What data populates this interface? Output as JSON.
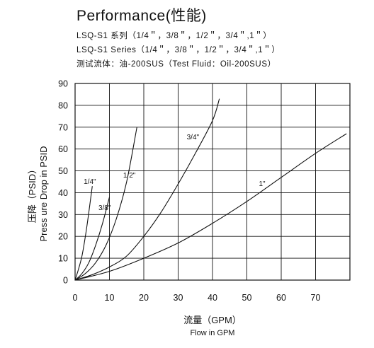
{
  "header": {
    "title": "Performance(性能)",
    "line1": "LSQ-S1  系列（1/4＂，3/8＂，1/2＂，3/4＂,1＂）",
    "line2": "LSQ-S1  Series（1/4＂，3/8＂，1/2＂，3/4＂,1＂）",
    "line3": "测试流体：油-200SUS（Test Fluid：Oil-200SUS）"
  },
  "chart_data": {
    "type": "line",
    "xlabel": "流量（GPM）",
    "xlabel_sub": "Flow in GPM",
    "ylabel": "压降（PSID）",
    "ylabel_sub": "Press ure Drop in PSID",
    "xlim": [
      0,
      80
    ],
    "ylim": [
      0,
      90
    ],
    "x_ticks": [
      "0",
      "10",
      "20",
      "30",
      "40",
      "50",
      "60",
      "70"
    ],
    "y_ticks": [
      "0",
      "10",
      "20",
      "30",
      "40",
      "50",
      "60",
      "70",
      "80",
      "90"
    ],
    "grid": true,
    "series": [
      {
        "name": "1/4\"",
        "label_at": [
          2.5,
          44
        ],
        "points": [
          [
            0,
            0
          ],
          [
            1,
            5
          ],
          [
            2,
            11
          ],
          [
            3,
            20
          ],
          [
            4,
            31
          ],
          [
            5,
            43
          ]
        ]
      },
      {
        "name": "3/8\"",
        "label_at": [
          6.8,
          32
        ],
        "points": [
          [
            0,
            0
          ],
          [
            2,
            3
          ],
          [
            4,
            8
          ],
          [
            6,
            16
          ],
          [
            8,
            26
          ],
          [
            10,
            38
          ]
        ]
      },
      {
        "name": "1/2\"",
        "label_at": [
          14,
          47
        ],
        "points": [
          [
            0,
            0
          ],
          [
            3,
            3
          ],
          [
            6,
            8
          ],
          [
            9,
            16
          ],
          [
            12,
            28
          ],
          [
            15,
            45
          ],
          [
            18,
            70
          ]
        ]
      },
      {
        "name": "3/4\"",
        "label_at": [
          32.5,
          64.5
        ],
        "points": [
          [
            0,
            0
          ],
          [
            5,
            2.5
          ],
          [
            10,
            6
          ],
          [
            15,
            11
          ],
          [
            20,
            20
          ],
          [
            25,
            31
          ],
          [
            30,
            44
          ],
          [
            35,
            58
          ],
          [
            40,
            73
          ],
          [
            42,
            83
          ]
        ]
      },
      {
        "name": "1\"",
        "label_at": [
          53.5,
          43
        ],
        "points": [
          [
            0,
            0
          ],
          [
            10,
            4
          ],
          [
            20,
            10
          ],
          [
            30,
            17
          ],
          [
            40,
            26
          ],
          [
            50,
            36
          ],
          [
            60,
            47
          ],
          [
            70,
            58
          ],
          [
            79,
            67
          ]
        ]
      }
    ]
  }
}
